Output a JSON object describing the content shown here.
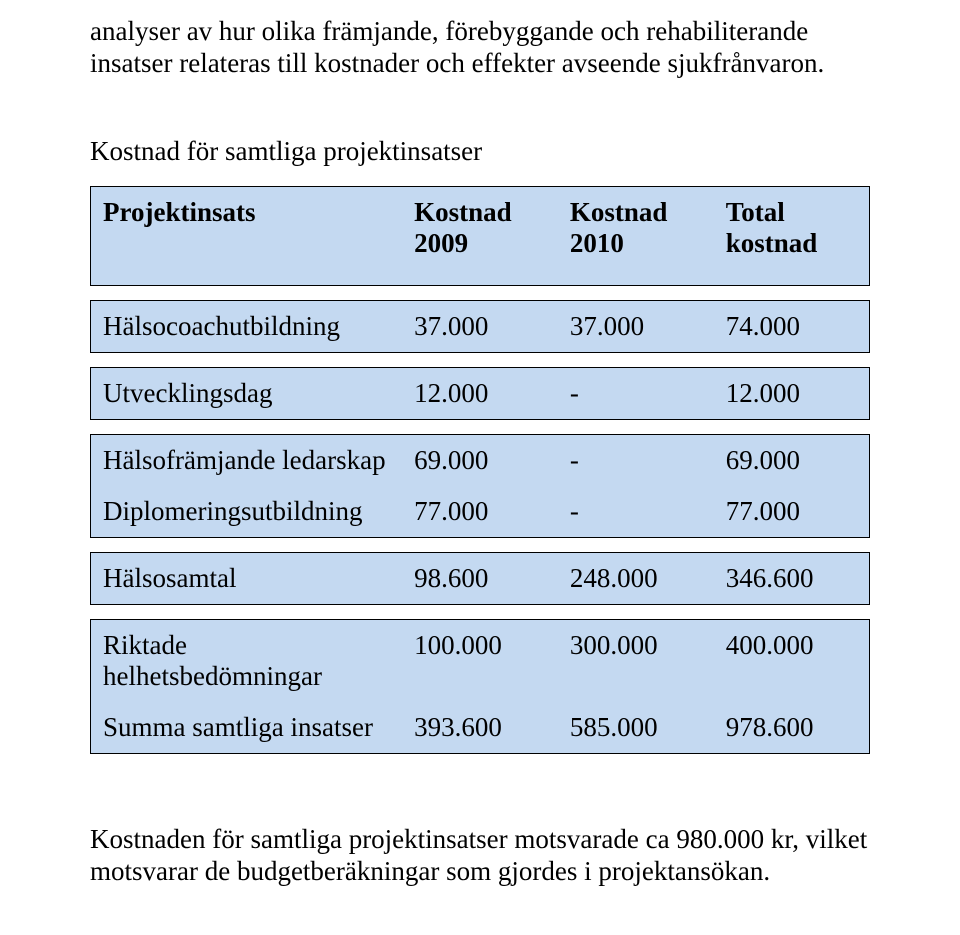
{
  "paragraphs": {
    "intro": "analyser av hur olika främjande, förebyggande och rehabiliterande insatser relateras till kostnader och effekter avseende sjukfrånvaron.",
    "subhead": "Kostnad för samtliga projektinsatser",
    "footer": "Kostnaden för samtliga projektinsatser motsvarade ca 980.000 kr, vilket motsvarar de budgetberäkningar som gjordes i projektansökan."
  },
  "table": {
    "colors": {
      "row_bg": "#c4d9f1",
      "border": "#000000",
      "text": "#000000",
      "page_bg": "#ffffff"
    },
    "columns": [
      "Projektinsats",
      "Kostnad 2009",
      "Kostnad 2010",
      "Total kostnad"
    ],
    "groups": [
      {
        "rows": [
          {
            "label": "Hälsocoachutbildning",
            "c2009": "37.000",
            "c2010": "37.000",
            "total": "74.000"
          }
        ]
      },
      {
        "rows": [
          {
            "label": "Utvecklingsdag",
            "c2009": "12.000",
            "c2010": "-",
            "total": "12.000"
          }
        ]
      },
      {
        "rows": [
          {
            "label": "Hälsofrämjande ledarskap",
            "c2009": "69.000",
            "c2010": "-",
            "total": "69.000"
          },
          {
            "label": "Diplomeringsutbildning",
            "c2009": "77.000",
            "c2010": "-",
            "total": "77.000"
          }
        ]
      },
      {
        "rows": [
          {
            "label": "Hälsosamtal",
            "c2009": "98.600",
            "c2010": "248.000",
            "total": "346.600"
          }
        ]
      },
      {
        "rows": [
          {
            "label": "Riktade helhetsbedömningar",
            "c2009": "100.000",
            "c2010": "300.000",
            "total": "400.000"
          },
          {
            "label": "Summa samtliga insatser",
            "c2009": "393.600",
            "c2010": "585.000",
            "total": "978.600"
          }
        ]
      }
    ]
  }
}
